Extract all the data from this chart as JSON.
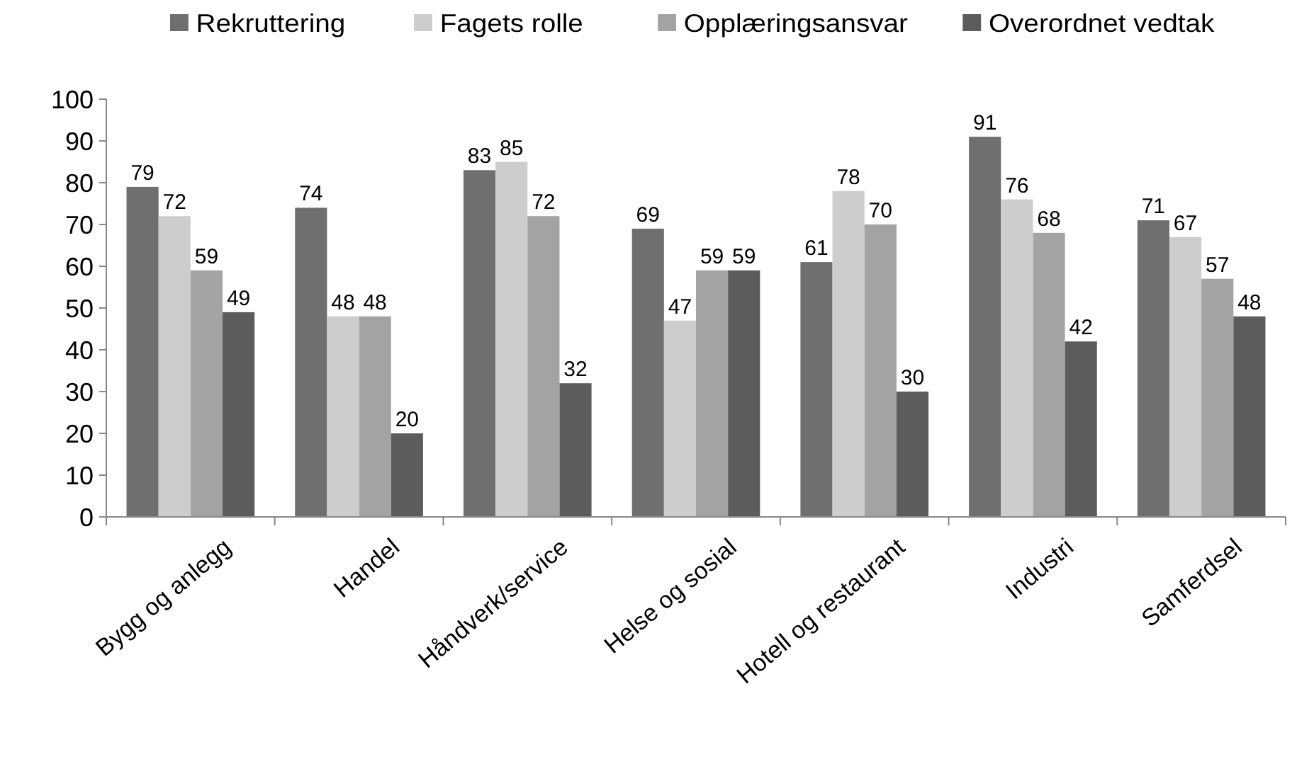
{
  "chart_data": {
    "type": "bar",
    "categories": [
      "Bygg og anlegg",
      "Handel",
      "Håndverk/service",
      "Helse og sosial",
      "Hotell og restaurant",
      "Industri",
      "Samferdsel"
    ],
    "series": [
      {
        "name": "Rekruttering",
        "color": "#6f6f6f",
        "values": [
          79,
          74,
          83,
          69,
          61,
          91,
          71
        ]
      },
      {
        "name": "Fagets rolle",
        "color": "#cdcdcd",
        "values": [
          72,
          48,
          85,
          47,
          78,
          76,
          67
        ]
      },
      {
        "name": "Opplæringsansvar",
        "color": "#a3a3a3",
        "values": [
          59,
          48,
          72,
          59,
          70,
          68,
          57
        ]
      },
      {
        "name": "Overordnet vedtak",
        "color": "#5c5c5c",
        "values": [
          49,
          20,
          32,
          59,
          30,
          42,
          48
        ]
      }
    ],
    "ylim": [
      0,
      100
    ],
    "yticks": [
      0,
      10,
      20,
      30,
      40,
      50,
      60,
      70,
      80,
      90,
      100
    ],
    "data_labels": true,
    "legend": "top",
    "grid": false
  }
}
